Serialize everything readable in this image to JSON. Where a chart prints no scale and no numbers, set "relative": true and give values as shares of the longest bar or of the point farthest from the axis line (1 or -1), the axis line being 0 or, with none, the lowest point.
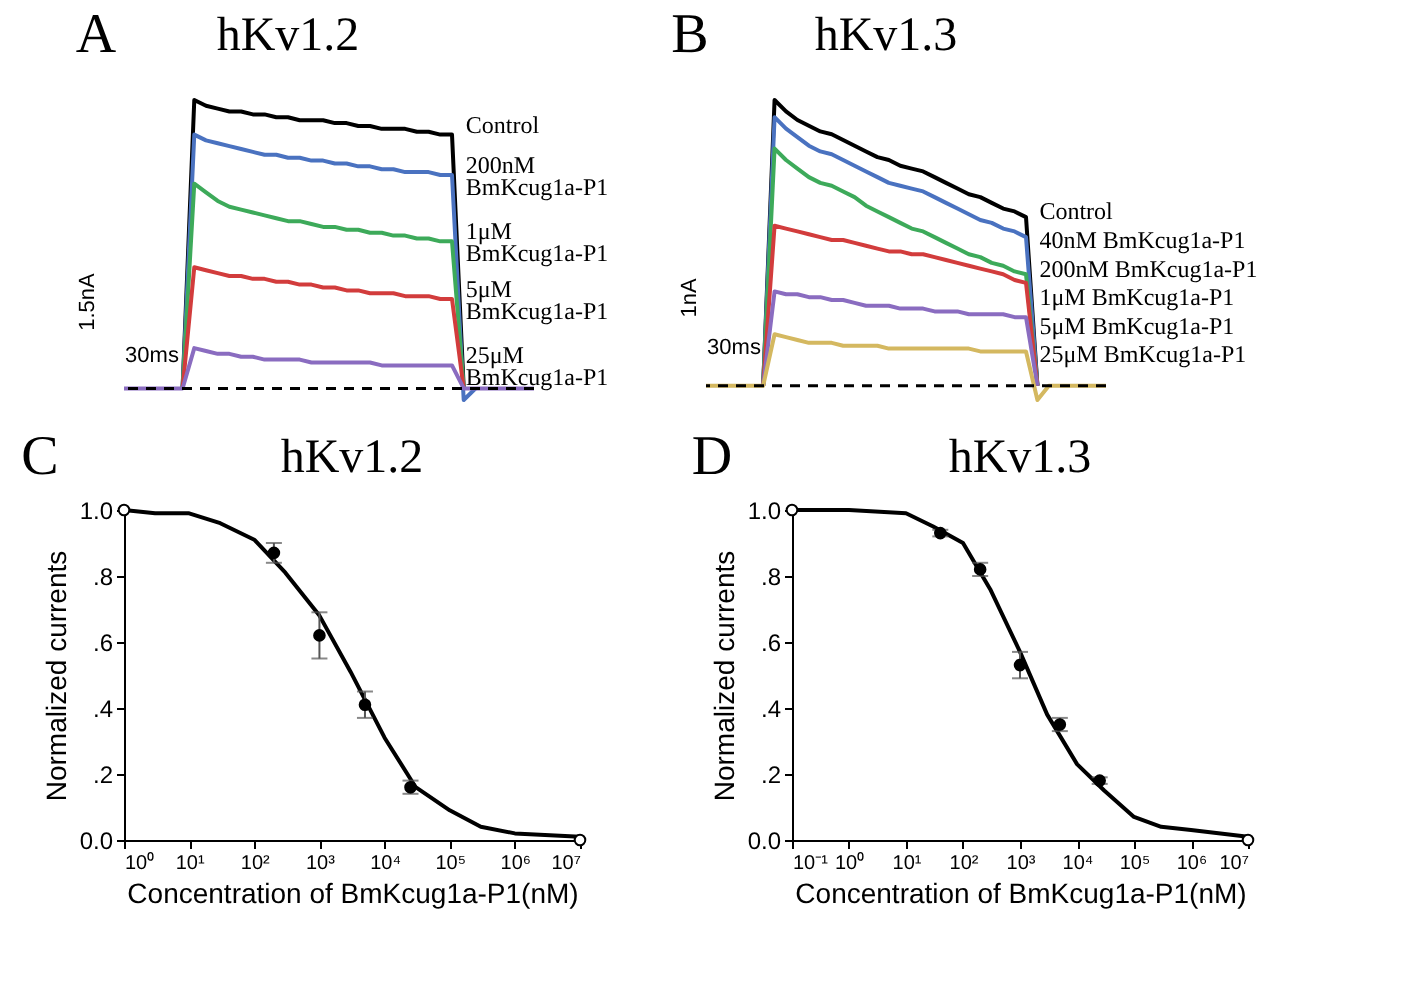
{
  "chart_data": [
    {
      "type": "line",
      "relative": true,
      "title": "hKv1.2",
      "annotations": [
        "A",
        "1.5nA",
        "30ms"
      ],
      "categories": [
        null,
        null,
        null,
        null,
        null,
        null,
        null,
        null,
        null,
        null,
        null,
        null,
        null,
        null,
        null,
        null,
        null,
        null,
        null,
        null,
        null,
        null,
        null,
        null,
        null,
        null,
        null,
        null,
        null,
        null,
        null,
        null,
        null,
        null,
        null,
        null
      ],
      "ref_lines": [
        {
          "axis": "y",
          "value": 0,
          "color": "#000000",
          "line_style": "dashed"
        }
      ],
      "series": [
        {
          "name": "Control",
          "color": "#000000",
          "values": [
            null,
            null,
            null,
            null,
            null,
            0,
            1.0,
            0.98,
            0.97,
            0.96,
            0.96,
            0.95,
            0.95,
            0.94,
            0.94,
            0.93,
            0.93,
            0.93,
            0.92,
            0.92,
            0.91,
            0.91,
            0.9,
            0.9,
            0.9,
            0.89,
            0.89,
            0.88,
            0.88,
            0,
            null,
            null,
            null,
            null,
            null,
            null
          ]
        },
        {
          "name": "200nM BmKcug1a-P1",
          "color": "#4a72c0",
          "values": [
            null,
            null,
            null,
            null,
            null,
            0,
            0.88,
            0.86,
            0.85,
            0.84,
            0.83,
            0.82,
            0.81,
            0.81,
            0.8,
            0.8,
            0.79,
            0.79,
            0.78,
            0.78,
            0.77,
            0.77,
            0.76,
            0.76,
            0.75,
            0.75,
            0.75,
            0.74,
            0.74,
            -0.04,
            0,
            null,
            null,
            null,
            null,
            null
          ]
        },
        {
          "name": "1μM BmKcug1a-P1",
          "color": "#3daa5a",
          "values": [
            null,
            null,
            null,
            null,
            null,
            0,
            0.71,
            0.68,
            0.65,
            0.63,
            0.62,
            0.61,
            0.6,
            0.59,
            0.58,
            0.58,
            0.57,
            0.56,
            0.56,
            0.55,
            0.55,
            0.54,
            0.54,
            0.53,
            0.53,
            0.52,
            0.52,
            0.51,
            0.51,
            0,
            null,
            null,
            null,
            null,
            null,
            null
          ]
        },
        {
          "name": "5μM BmKcug1a-P1",
          "color": "#d23c3c",
          "values": [
            null,
            null,
            null,
            null,
            null,
            0,
            0.42,
            0.41,
            0.4,
            0.39,
            0.39,
            0.38,
            0.38,
            0.37,
            0.37,
            0.36,
            0.36,
            0.35,
            0.35,
            0.34,
            0.34,
            0.33,
            0.33,
            0.33,
            0.32,
            0.32,
            0.32,
            0.31,
            0.31,
            0,
            null,
            null,
            null,
            null,
            null,
            null
          ]
        },
        {
          "name": "25μM BmKcug1a-P1",
          "color": "#8a6cc0",
          "values": [
            0,
            0,
            0,
            0,
            0,
            0,
            0.14,
            0.13,
            0.12,
            0.12,
            0.11,
            0.11,
            0.1,
            0.1,
            0.1,
            0.1,
            0.09,
            0.09,
            0.09,
            0.09,
            0.09,
            0.09,
            0.08,
            0.08,
            0.08,
            0.08,
            0.08,
            0.08,
            0.08,
            0,
            0,
            0,
            0,
            0,
            0,
            0
          ]
        }
      ]
    },
    {
      "type": "line",
      "relative": true,
      "title": "hKv1.3",
      "annotations": [
        "B",
        "1nA",
        "30ms"
      ],
      "categories": [
        null,
        null,
        null,
        null,
        null,
        null,
        null,
        null,
        null,
        null,
        null,
        null,
        null,
        null,
        null,
        null,
        null,
        null,
        null,
        null,
        null,
        null,
        null,
        null,
        null,
        null,
        null,
        null,
        null,
        null,
        null,
        null,
        null,
        null,
        null,
        null
      ],
      "ref_lines": [
        {
          "axis": "y",
          "value": 0,
          "color": "#000000",
          "line_style": "dashed"
        }
      ],
      "series": [
        {
          "name": "Control",
          "color": "#000000",
          "values": [
            null,
            null,
            null,
            null,
            null,
            0,
            1.0,
            0.96,
            0.93,
            0.91,
            0.89,
            0.88,
            0.86,
            0.84,
            0.82,
            0.8,
            0.79,
            0.77,
            0.76,
            0.75,
            0.73,
            0.71,
            0.69,
            0.67,
            0.66,
            0.64,
            0.62,
            0.61,
            0.59,
            0,
            null,
            null,
            null,
            null,
            null,
            null
          ]
        },
        {
          "name": "40nM BmKcug1a-P1",
          "color": "#4a72c0",
          "values": [
            null,
            null,
            null,
            null,
            null,
            0,
            0.94,
            0.9,
            0.87,
            0.84,
            0.82,
            0.81,
            0.79,
            0.77,
            0.75,
            0.73,
            0.71,
            0.7,
            0.69,
            0.68,
            0.66,
            0.64,
            0.62,
            0.6,
            0.58,
            0.57,
            0.55,
            0.54,
            0.52,
            0,
            null,
            null,
            null,
            null,
            null,
            null
          ]
        },
        {
          "name": "200nM BmKcug1a-P1",
          "color": "#3daa5a",
          "values": [
            null,
            null,
            null,
            null,
            null,
            0,
            0.83,
            0.79,
            0.76,
            0.73,
            0.71,
            0.7,
            0.68,
            0.66,
            0.63,
            0.61,
            0.59,
            0.57,
            0.55,
            0.54,
            0.52,
            0.5,
            0.48,
            0.46,
            0.45,
            0.43,
            0.42,
            0.4,
            0.39,
            0,
            null,
            null,
            null,
            null,
            null,
            null
          ]
        },
        {
          "name": "1μM BmKcug1a-P1",
          "color": "#d23c3c",
          "values": [
            null,
            null,
            null,
            null,
            null,
            0,
            0.56,
            0.55,
            0.54,
            0.53,
            0.52,
            0.51,
            0.51,
            0.5,
            0.49,
            0.48,
            0.47,
            0.47,
            0.46,
            0.46,
            0.45,
            0.44,
            0.43,
            0.42,
            0.41,
            0.4,
            0.39,
            0.37,
            0.36,
            0,
            null,
            null,
            null,
            null,
            null,
            null
          ]
        },
        {
          "name": "5μM BmKcug1a-P1",
          "color": "#8a6cc0",
          "values": [
            null,
            null,
            null,
            null,
            null,
            0,
            0.33,
            0.32,
            0.32,
            0.31,
            0.31,
            0.3,
            0.3,
            0.29,
            0.28,
            0.28,
            0.28,
            0.27,
            0.27,
            0.27,
            0.26,
            0.26,
            0.26,
            0.25,
            0.25,
            0.25,
            0.25,
            0.24,
            0.24,
            0,
            null,
            null,
            null,
            null,
            null,
            null
          ]
        },
        {
          "name": "25μM BmKcug1a-P1",
          "color": "#d4b860",
          "values": [
            0,
            0,
            0,
            0,
            0,
            0,
            0.18,
            0.17,
            0.16,
            0.15,
            0.15,
            0.15,
            0.14,
            0.14,
            0.14,
            0.14,
            0.13,
            0.13,
            0.13,
            0.13,
            0.13,
            0.13,
            0.13,
            0.13,
            0.12,
            0.12,
            0.12,
            0.12,
            0.12,
            -0.05,
            0,
            0,
            0,
            0,
            0,
            0
          ]
        }
      ]
    },
    {
      "type": "scatter",
      "title": "hKv1.2",
      "annotations": [
        "C"
      ],
      "xlabel": "Concentration of BmKcug1a-P1(nM)",
      "ylabel": "Normalized currents",
      "log": "x",
      "xlim": [
        1,
        10000000
      ],
      "ylim": [
        0,
        1
      ],
      "xticks": [
        {
          "value": 1,
          "label": "10⁰"
        },
        {
          "value": 10,
          "label": "10¹"
        },
        {
          "value": 100,
          "label": "10²"
        },
        {
          "value": 1000,
          "label": "10³"
        },
        {
          "value": 10000,
          "label": "10⁴"
        },
        {
          "value": 100000,
          "label": "10⁵"
        },
        {
          "value": 1000000,
          "label": "10⁶"
        },
        {
          "value": 10000000,
          "label": "10⁷"
        }
      ],
      "yticks": [
        {
          "value": 0,
          "label": "0.0"
        },
        {
          "value": 0.2,
          "label": ".2"
        },
        {
          "value": 0.4,
          "label": ".4"
        },
        {
          "value": 0.6,
          "label": ".6"
        },
        {
          "value": 0.8,
          "label": ".8"
        },
        {
          "value": 1,
          "label": "1.0"
        }
      ],
      "series": [
        {
          "type": "line",
          "color": "#000000",
          "x": [
            1,
            3,
            10,
            30,
            100,
            300,
            1000,
            3000,
            10000,
            30000,
            100000,
            300000,
            1000000,
            10000000
          ],
          "values": [
            1.0,
            0.99,
            0.99,
            0.96,
            0.91,
            0.81,
            0.68,
            0.51,
            0.31,
            0.16,
            0.09,
            0.04,
            0.02,
            0.01
          ]
        },
        {
          "type": "scatter",
          "marker": "circle",
          "color": "#000000",
          "x": [
            200,
            1000,
            5000,
            25000
          ],
          "values": [
            0.87,
            0.62,
            0.41,
            0.16
          ],
          "errors": [
            0.03,
            0.07,
            0.04,
            0.02
          ]
        },
        {
          "type": "scatter",
          "marker": "circle",
          "color": "#ffffff",
          "x": [
            1,
            10000000
          ],
          "values": [
            1.0,
            0.0
          ]
        }
      ]
    },
    {
      "type": "scatter",
      "title": "hKv1.3",
      "annotations": [
        "D"
      ],
      "xlabel": "Concentration of BmKcug1a-P1(nM)",
      "ylabel": "Normalized currents",
      "log": "x",
      "xlim": [
        0.1,
        10000000
      ],
      "ylim": [
        0,
        1
      ],
      "xticks": [
        {
          "value": 0.1,
          "label": "10⁻¹"
        },
        {
          "value": 1,
          "label": "10⁰"
        },
        {
          "value": 10,
          "label": "10¹"
        },
        {
          "value": 100,
          "label": "10²"
        },
        {
          "value": 1000,
          "label": "10³"
        },
        {
          "value": 10000,
          "label": "10⁴"
        },
        {
          "value": 100000,
          "label": "10⁵"
        },
        {
          "value": 1000000,
          "label": "10⁶"
        },
        {
          "value": 10000000,
          "label": "10⁷"
        }
      ],
      "yticks": [
        {
          "value": 0,
          "label": "0.0"
        },
        {
          "value": 0.2,
          "label": ".2"
        },
        {
          "value": 0.4,
          "label": ".4"
        },
        {
          "value": 0.6,
          "label": ".6"
        },
        {
          "value": 0.8,
          "label": ".8"
        },
        {
          "value": 1,
          "label": "1.0"
        }
      ],
      "series": [
        {
          "type": "line",
          "color": "#000000",
          "x": [
            0.1,
            1,
            10,
            30,
            100,
            300,
            1000,
            3000,
            10000,
            30000,
            100000,
            300000,
            1000000,
            10000000
          ],
          "values": [
            1.0,
            1.0,
            0.99,
            0.95,
            0.9,
            0.76,
            0.57,
            0.38,
            0.23,
            0.15,
            0.07,
            0.04,
            0.03,
            0.01
          ]
        },
        {
          "type": "scatter",
          "marker": "circle",
          "color": "#000000",
          "x": [
            40,
            200,
            1000,
            5000,
            25000
          ],
          "values": [
            0.93,
            0.82,
            0.53,
            0.35,
            0.18
          ],
          "errors": [
            0.01,
            0.02,
            0.04,
            0.02,
            0.01
          ]
        },
        {
          "type": "scatter",
          "marker": "circle",
          "color": "#ffffff",
          "x": [
            0.1,
            10000000
          ],
          "values": [
            1.0,
            0.0
          ]
        }
      ]
    }
  ]
}
